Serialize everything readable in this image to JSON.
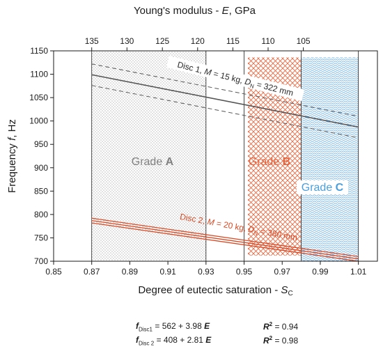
{
  "chart_data": {
    "type": "line",
    "xlabel": "Degree of eutectic saturation - ",
    "xlabel_symbol": "S",
    "xlabel_sub": "C",
    "ylabel": "Frequency ",
    "ylabel_symbol": "f",
    "ylabel_unit": ", Hz",
    "x2label": "Young's modulus - ",
    "x2label_symbol": "E",
    "x2label_unit": ", GPa",
    "xlim": [
      0.85,
      1.02
    ],
    "ylim": [
      700,
      1150
    ],
    "x_ticks": [
      "0.85",
      "0.87",
      "0.89",
      "0.91",
      "0.93",
      "0.95",
      "0.97",
      "0.99",
      "1.01"
    ],
    "x_tick_values": [
      0.85,
      0.87,
      0.89,
      0.91,
      0.93,
      0.95,
      0.97,
      0.99,
      1.01
    ],
    "y_ticks": [
      "700",
      "750",
      "800",
      "850",
      "900",
      "950",
      "1000",
      "1050",
      "1100",
      "1150"
    ],
    "y_tick_values": [
      700,
      750,
      800,
      850,
      900,
      950,
      1000,
      1050,
      1100,
      1150
    ],
    "x2_ticks": [
      "135",
      "130",
      "125",
      "120",
      "115",
      "110",
      "105"
    ],
    "x2_tick_positions_sc": [
      0.87,
      0.8885,
      0.9071,
      0.9256,
      0.9441,
      0.9626,
      0.9811
    ],
    "regions": [
      {
        "label": "Grade ",
        "letter": "A",
        "x_range": [
          0.87,
          0.93
        ],
        "y_top": 1150,
        "color": "#808080",
        "pattern": "dots"
      },
      {
        "label": "Grade ",
        "letter": "B",
        "x_range": [
          0.952,
          0.98
        ],
        "y_top": 1136,
        "y_bottom": 712,
        "color": "#e8623a",
        "pattern": "crosshatch"
      },
      {
        "label": "Grade ",
        "letter": "C",
        "x_range": [
          0.98,
          1.01
        ],
        "y_top": 1136,
        "y_bottom": 700,
        "color": "#4a9fe0",
        "pattern": "waves"
      }
    ],
    "vertical_lines": [
      0.87,
      0.93,
      0.95,
      0.98,
      1.01
    ],
    "series": [
      {
        "name": "Disc 1",
        "label_text": "Disc 1, ",
        "label_M": "M",
        "label_mid": " = 15 kg, ",
        "label_D": "D",
        "label_sub": "N",
        "label_end": " = 322 mm",
        "color": "#555555",
        "x": [
          0.87,
          1.01
        ],
        "y": [
          1099,
          987
        ],
        "band_upper": [
          1122,
          1010
        ],
        "band_lower": [
          1076,
          964
        ]
      },
      {
        "name": "Disc 2",
        "label_text": "Disc 2, ",
        "label_M": "M",
        "label_mid": " = 20 kg, ",
        "label_D": "D",
        "label_sub": "N",
        "label_end": " = 380 mm",
        "color": "#d94b26",
        "x": [
          0.87,
          1.01
        ],
        "y": [
          787,
          705
        ],
        "band_upper": [
          792,
          710
        ],
        "band_lower": [
          782,
          700
        ]
      }
    ]
  },
  "equations": [
    {
      "f": "f",
      "sub": "Disc1",
      "rhs": " = 562 + 3.98 ",
      "E": "E",
      "r2": "R",
      "r2_sup": "2",
      "r2_val": " = 0.94"
    },
    {
      "f": "f",
      "sub": "Disc 2",
      "rhs": " = 408 + 2.81 ",
      "E": "E",
      "r2": "R",
      "r2_sup": "2",
      "r2_val": " = 0.98"
    }
  ]
}
